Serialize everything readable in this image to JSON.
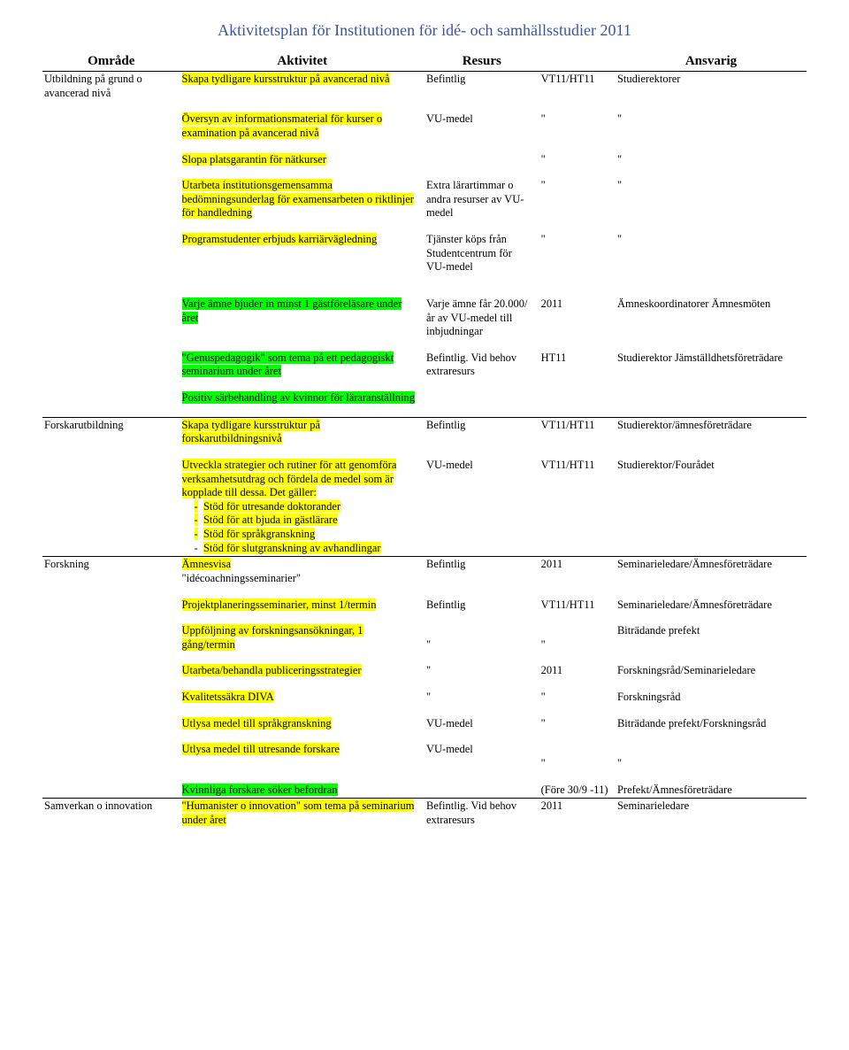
{
  "title": "Aktivitetsplan för Institutionen för idé- och samhällsstudier 2011",
  "headers": {
    "c1": "Område",
    "c2": "Aktivitet",
    "c3": "Resurs",
    "c4": "",
    "c5": "Ansvarig"
  },
  "s1": {
    "area": "Utbildning på grund o avancerad nivå",
    "r1": {
      "act": "Skapa tydligare kursstruktur på avancerad nivå",
      "res": "Befintlig",
      "when": "VT11/HT11",
      "resp": "Studierektorer"
    },
    "r2": {
      "act": "Översyn av informationsmaterial för kurser o examination på avancerad nivå",
      "res": "VU-medel",
      "when": "\"",
      "resp": "\""
    },
    "r3": {
      "act": "Slopa platsgarantin för nätkurser",
      "when": "\"",
      "resp": "\""
    },
    "r4": {
      "act": "Utarbeta institutionsgemensamma bedömningsunderlag för examensarbeten o riktlinjer för handledning",
      "res": "Extra lärartimmar o andra resurser av VU-medel",
      "when": "\"",
      "resp": "\""
    },
    "r5": {
      "act": "Programstudenter erbjuds karriärvägledning",
      "res": "Tjänster köps från Studentcentrum för VU-medel",
      "when": "\"",
      "resp": "\""
    },
    "r6": {
      "act": "Varje ämne bjuder in minst 1 gästföreläsare under året",
      "res": "Varje ämne får 20.000/år av VU-medel till inbjudningar",
      "when": "2011",
      "resp": "Ämneskoordinatorer Ämnesmöten"
    },
    "r7": {
      "act": "\"Genuspedagogik\" som tema på ett pedagogiskt seminarium under året",
      "res": "Befintlig. Vid behov extraresurs",
      "when": "HT11",
      "resp": "Studierektor Jämställdhetsföreträdare"
    },
    "r8": {
      "act": "Positiv särbehandling av kvinnor för läraranställning"
    }
  },
  "s2": {
    "area": "Forskarutbildning",
    "r1": {
      "act": "Skapa tydligare kursstruktur på forskarutbildningsnivå",
      "res": "Befintlig",
      "when": "VT11/HT11",
      "resp": "Studierektor/ämnesföreträdare"
    },
    "r2": {
      "intro": "Utveckla strategier och rutiner för att genomföra verksamhetsutdrag och fördela de medel som är kopplade till dessa. Det gäller:",
      "b1p": "-",
      "b1": "Stöd för utresande doktorander",
      "b2p": "-",
      "b2": "Stöd för att bjuda in gästlärare",
      "b3p": "-",
      "b3": "Stöd för språkgranskning",
      "b4p": "-",
      "b4": "Stöd för slutgranskning av avhandlingar",
      "res": "VU-medel",
      "when": "VT11/HT11",
      "resp": "Studierektor/Fourådet"
    }
  },
  "s3": {
    "area": "Forskning",
    "r1": {
      "act1": "Ämnesvisa",
      "act2": "\"idécoachningsseminarier\"",
      "res": "Befintlig",
      "when": "2011",
      "resp": "Seminarieledare/Ämnesföreträdare"
    },
    "r2": {
      "act": "Projektplaneringsseminarier, minst 1/termin",
      "res": "Befintlig",
      "when": "VT11/HT11",
      "resp": "Seminarieledare/Ämnesföreträdare"
    },
    "r3": {
      "act": "Uppföljning av forskningsansökningar, 1 gång/termin",
      "res": "\"",
      "when": "\"",
      "resp": "Biträdande prefekt"
    },
    "r4": {
      "act": "Utarbeta/behandla publiceringsstrategier",
      "res": "\"",
      "when": "2011",
      "resp": "Forskningsråd/Seminarieledare"
    },
    "r5": {
      "act": "Kvalitetssäkra DIVA",
      "res": "\"",
      "when": "\"",
      "resp": "Forskningsråd"
    },
    "r6": {
      "act": "Utlysa medel till språkgranskning",
      "res": "VU-medel",
      "when": "\"",
      "resp": "Biträdande prefekt/Forskningsråd"
    },
    "r7": {
      "act": "Utlysa medel till utresande forskare",
      "res": "VU-medel",
      "when": "\"",
      "resp": "\""
    },
    "r8": {
      "act": "Kvinnliga forskare söker befordran",
      "when": "(Före 30/9 -11)",
      "resp": "Prefekt/Ämnesföreträdare"
    }
  },
  "s4": {
    "area": "Samverkan o innovation",
    "r1": {
      "act": "\"Humanister o innovation\" som tema på seminarium under året",
      "res": "Befintlig. Vid behov extraresurs",
      "when": "2011",
      "resp": "Seminarieledare"
    }
  }
}
